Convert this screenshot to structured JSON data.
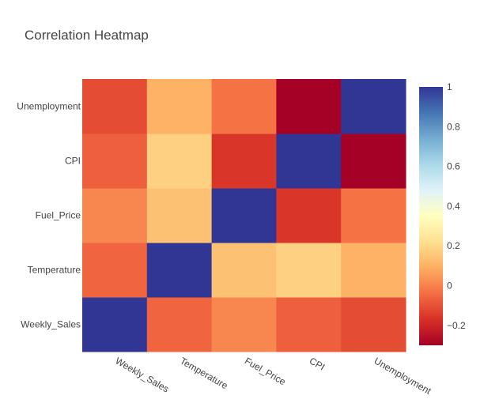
{
  "chart_data": {
    "type": "heatmap",
    "title": "Correlation Heatmap",
    "x_categories": [
      "Weekly_Sales",
      "Temperature",
      "Fuel_Price",
      "CPI",
      "Unemployment"
    ],
    "y_categories": [
      "Weekly_Sales",
      "Temperature",
      "Fuel_Price",
      "CPI",
      "Unemployment"
    ],
    "matrix": [
      [
        1.0,
        -0.06,
        0.01,
        -0.07,
        -0.11
      ],
      [
        -0.06,
        1.0,
        0.14,
        0.18,
        0.1
      ],
      [
        0.01,
        0.14,
        1.0,
        -0.16,
        -0.03
      ],
      [
        -0.07,
        0.18,
        -0.16,
        1.0,
        -0.3
      ],
      [
        -0.11,
        0.1,
        -0.03,
        -0.3,
        1.0
      ]
    ],
    "zlim": [
      -0.3,
      1.0
    ],
    "colorbar": {
      "ticks": [
        -0.2,
        0,
        0.2,
        0.4,
        0.6,
        0.8,
        1
      ],
      "tick_labels": [
        "−0.2",
        "0",
        "0.2",
        "0.4",
        "0.6",
        "0.8",
        "1"
      ]
    },
    "colorscale": [
      [
        0.0,
        "#a50026"
      ],
      [
        0.1,
        "#d73027"
      ],
      [
        0.2,
        "#f46d43"
      ],
      [
        0.3,
        "#fdae61"
      ],
      [
        0.4,
        "#fee090"
      ],
      [
        0.5,
        "#ffffbf"
      ],
      [
        0.6,
        "#e0f3f8"
      ],
      [
        0.7,
        "#abd9e9"
      ],
      [
        0.8,
        "#74add1"
      ],
      [
        0.9,
        "#4575b4"
      ],
      [
        1.0,
        "#313695"
      ]
    ]
  }
}
